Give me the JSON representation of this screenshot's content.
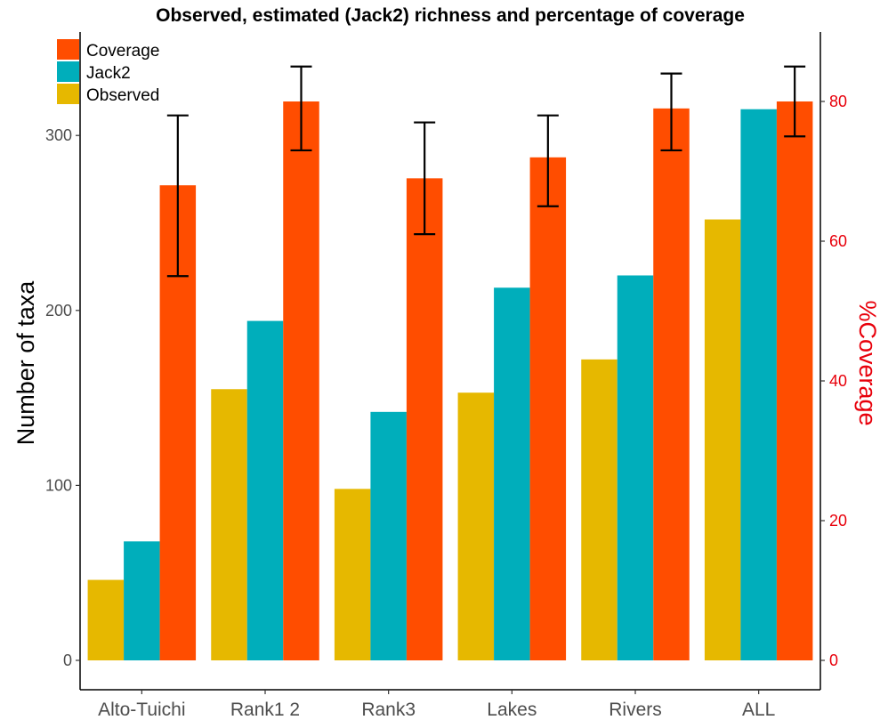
{
  "chart_data": {
    "type": "bar",
    "title": "Observed, estimated (Jack2) richness and percentage of coverage",
    "ylabel": "Number of taxa",
    "ylabel_right": "%Coverage",
    "xlabel": "",
    "categories": [
      "Alto-Tuichi",
      "Rank1  2",
      "Rank3",
      "Lakes",
      "Rivers",
      "ALL"
    ],
    "ylim": [
      0,
      320
    ],
    "ylim_right": [
      0,
      86.7
    ],
    "yticks": [
      "0",
      "100",
      "200",
      "300"
    ],
    "yticks_right": [
      "0",
      "20",
      "40",
      "60",
      "80"
    ],
    "series": [
      {
        "name": "Observed",
        "axis": "left",
        "color": "#E6B800",
        "values": [
          46,
          155,
          98,
          153,
          172,
          252
        ]
      },
      {
        "name": "Jack2",
        "axis": "left",
        "color": "#00AEBB",
        "values": [
          68,
          194,
          142,
          213,
          220,
          315
        ]
      },
      {
        "name": "Coverage",
        "axis": "right",
        "color": "#FF4D00",
        "values": [
          68,
          80,
          69,
          72,
          79,
          80
        ],
        "error_low": [
          55,
          73,
          61,
          65,
          73,
          75
        ],
        "error_high": [
          78,
          85,
          77,
          78,
          84,
          85
        ]
      }
    ],
    "legend": [
      "Coverage",
      "Jack2",
      "Observed"
    ],
    "legend_position": "top-left",
    "grid": false
  }
}
